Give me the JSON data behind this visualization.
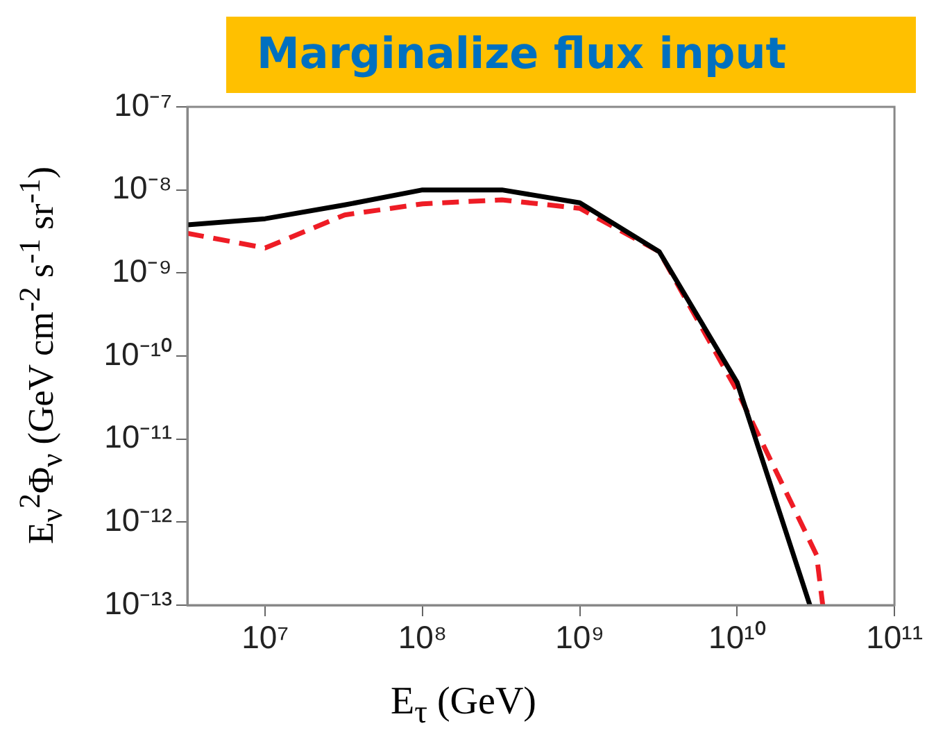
{
  "chart_data": {
    "type": "line",
    "title": "Marginalize flux input",
    "xlabel": "E$_{τ}$ (GeV)",
    "ylabel": "E$_{ν}$$^{2}$Φ$_{ν}$ (GeV cm$^{-2}$ s$^{-1}$ sr$^{-1}$)",
    "log": "xy",
    "grid": false,
    "legend": false,
    "marker": "none",
    "xlim": [
      3200000.0,
      100000000000.0
    ],
    "ylim": [
      1e-13,
      1e-07
    ],
    "xticks": [
      {
        "value": 10000000.0,
        "label": "10⁷"
      },
      {
        "value": 100000000.0,
        "label": "10⁸"
      },
      {
        "value": 1000000000.0,
        "label": "10⁹"
      },
      {
        "value": 10000000000.0,
        "label": "10¹⁰"
      },
      {
        "value": 100000000000.0,
        "label": "10¹¹"
      }
    ],
    "yticks": [
      {
        "value": 1e-13,
        "label": "10⁻¹³"
      },
      {
        "value": 1e-12,
        "label": "10⁻¹²"
      },
      {
        "value": 1e-11,
        "label": "10⁻¹¹"
      },
      {
        "value": 1e-10,
        "label": "10⁻¹⁰"
      },
      {
        "value": 1e-09,
        "label": "10⁻⁹"
      },
      {
        "value": 1e-08,
        "label": "10⁻⁸"
      },
      {
        "value": 1e-07,
        "label": "10⁻⁷"
      }
    ],
    "series": [
      {
        "color": "#000000",
        "line_style": "solid",
        "x": [
          3200000.0,
          10000000.0,
          32000000.0,
          100000000.0,
          320000000.0,
          1000000000.0,
          3200000000.0,
          10000000000.0,
          29000000000.0
        ],
        "values": [
          3.8e-09,
          4.5e-09,
          6.6e-09,
          1e-08,
          1e-08,
          7e-09,
          1.8e-09,
          4.8e-11,
          1e-13
        ]
      },
      {
        "color": "#ee1c25",
        "line_style": "dashed",
        "x": [
          3200000.0,
          10000000.0,
          32000000.0,
          100000000.0,
          320000000.0,
          1000000000.0,
          3200000000.0,
          10000000000.0,
          32000000000.0,
          35000000000.0
        ],
        "values": [
          3e-09,
          2e-09,
          5e-09,
          6.8e-09,
          7.6e-09,
          6e-09,
          1.8e-09,
          3.8e-11,
          4e-13,
          1e-13
        ]
      }
    ]
  }
}
